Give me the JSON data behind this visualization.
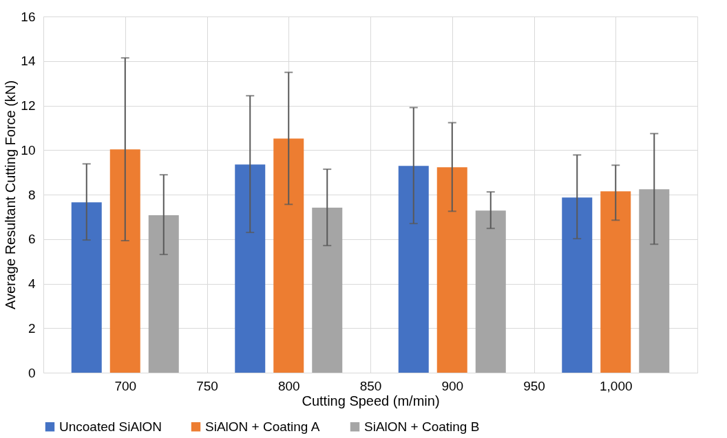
{
  "chart_data": {
    "type": "bar",
    "xlabel": "Cutting Speed (m/min)",
    "ylabel": "Average Resultant Cutting Force (kN)",
    "x": [
      700,
      800,
      900,
      1000
    ],
    "xlim": [
      650,
      1050
    ],
    "xticks": [
      700,
      750,
      800,
      850,
      900,
      950,
      {
        "value": 1000,
        "label": "1,000"
      }
    ],
    "ylim": [
      0,
      16
    ],
    "yticks": [
      0,
      2,
      4,
      6,
      8,
      10,
      12,
      14,
      16
    ],
    "grid": true,
    "legend": "bottom",
    "series": [
      {
        "name": "Uncoated SiAlON",
        "color": "#4472c4",
        "values": [
          7.65,
          9.35,
          9.29,
          7.87
        ],
        "errors": [
          [
            5.96,
            9.38
          ],
          [
            6.3,
            12.44
          ],
          [
            6.7,
            11.91
          ],
          [
            6.02,
            9.78
          ]
        ]
      },
      {
        "name": "SiAlON + Coating A",
        "color": "#ed7d31",
        "values": [
          10.03,
          10.52,
          9.23,
          8.15
        ],
        "errors": [
          [
            5.93,
            14.14
          ],
          [
            7.56,
            13.49
          ],
          [
            7.25,
            11.23
          ],
          [
            6.85,
            9.32
          ]
        ]
      },
      {
        "name": "SiAlON + Coating B",
        "color": "#a5a5a5",
        "values": [
          7.07,
          7.41,
          7.28,
          8.24
        ],
        "errors": [
          [
            5.31,
            8.89
          ],
          [
            5.71,
            9.14
          ],
          [
            6.48,
            8.12
          ],
          [
            5.77,
            10.74
          ]
        ]
      }
    ]
  }
}
